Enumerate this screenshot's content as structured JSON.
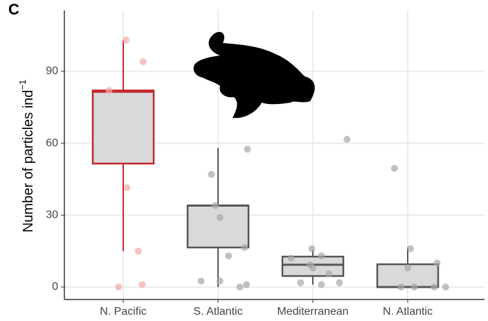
{
  "chart_data": {
    "type": "box",
    "panel_label": "C",
    "y_label": "Number of particles ind",
    "y_label_sup": "−1",
    "categories": [
      "N. Pacific",
      "S. Atlantic",
      "Mediterranean",
      "N. Atlantic"
    ],
    "ylim": [
      -5.2,
      115.4
    ],
    "yticks": [
      0,
      30,
      60,
      90
    ],
    "grid": true,
    "boxes": [
      {
        "whisker_low": 15,
        "q1": 51.5,
        "median": 81.5,
        "q3": 82,
        "whisker_high": 103,
        "color": "#c1272d",
        "fill": "#d9d9d9"
      },
      {
        "whisker_low": 0,
        "q1": 16.5,
        "median": 34,
        "q3": 34,
        "whisker_high": 58,
        "color": "#555555",
        "fill": "#d9d9d9"
      },
      {
        "whisker_low": 1,
        "q1": 4.6,
        "median": 9.3,
        "q3": 12.7,
        "whisker_high": 15.5,
        "color": "#555555",
        "fill": "#d9d9d9"
      },
      {
        "whisker_low": 0,
        "q1": 0,
        "median": 0,
        "q3": 9.5,
        "whisker_high": 16.5,
        "color": "#555555",
        "fill": "#d9d9d9"
      }
    ],
    "points": [
      {
        "color": "#f4a6a6",
        "x": [
          1.03,
          1.21,
          0.85,
          1.04,
          1.16,
          0.95,
          1.2
        ],
        "y": [
          103,
          94,
          82,
          41.5,
          15,
          0,
          1
        ]
      },
      {
        "color": "#a6a6a6",
        "x": [
          1.93,
          2.31,
          1.97,
          2.02,
          2.28,
          2.11,
          2.02,
          1.82,
          2.3,
          2.23
        ],
        "y": [
          47,
          57.5,
          34,
          29,
          16.5,
          13,
          2.5,
          2.5,
          1,
          0
        ]
      },
      {
        "color": "#a6a6a6",
        "x": [
          3.36,
          2.99,
          3.09,
          2.77,
          2.97,
          3.0,
          3.17,
          2.87,
          3.09,
          3.28
        ],
        "y": [
          61.6,
          16,
          13,
          12,
          9.3,
          8,
          5.5,
          1.8,
          1,
          1.8
        ]
      },
      {
        "color": "#a6a6a6",
        "x": [
          3.86,
          4.03,
          4.31,
          4.0,
          3.93,
          4.07,
          4.28,
          4.4
        ],
        "y": [
          49.5,
          16,
          10,
          8,
          0,
          0,
          0,
          0
        ]
      }
    ]
  }
}
